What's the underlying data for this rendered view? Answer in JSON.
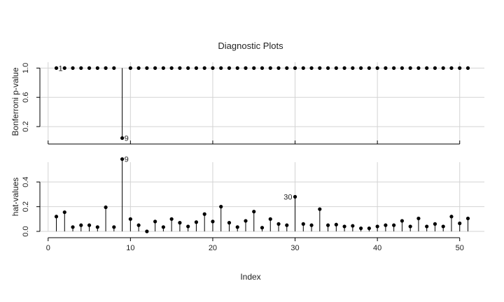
{
  "chart_data": {
    "title": "Diagnostic Plots",
    "xlabel": "Index",
    "xticks": [
      0,
      10,
      20,
      30,
      40,
      50
    ],
    "xlim": [
      -1,
      53
    ],
    "grid": true,
    "panels": [
      {
        "type": "stem",
        "ylabel": "Bonferroni p-value",
        "ylim": [
          0,
          1.08
        ],
        "yticks": [
          0.2,
          0.6,
          1.0
        ],
        "ytick_labels": [
          "0.2",
          "0.6",
          "1.0"
        ],
        "x": [
          1,
          2,
          3,
          4,
          5,
          6,
          7,
          8,
          9,
          10,
          11,
          12,
          13,
          14,
          15,
          16,
          17,
          18,
          19,
          20,
          21,
          22,
          23,
          24,
          25,
          26,
          27,
          28,
          29,
          30,
          31,
          32,
          33,
          34,
          35,
          36,
          37,
          38,
          39,
          40,
          41,
          42,
          43,
          44,
          45,
          46,
          47,
          48,
          49,
          50,
          51
        ],
        "values": [
          1,
          1,
          1,
          1,
          1,
          1,
          1,
          1,
          0.043,
          1,
          1,
          1,
          1,
          1,
          1,
          1,
          1,
          1,
          1,
          1,
          1,
          1,
          1,
          1,
          1,
          1,
          1,
          1,
          1,
          1,
          1,
          1,
          1,
          1,
          1,
          1,
          1,
          1,
          1,
          1,
          1,
          1,
          1,
          1,
          1,
          1,
          1,
          1,
          1,
          1,
          1
        ],
        "stem_base": 1.0,
        "annotations": [
          {
            "index": 1,
            "label": "1"
          },
          {
            "index": 9,
            "label": "9"
          }
        ]
      },
      {
        "type": "stem",
        "ylabel": "hat-values",
        "ylim": [
          0,
          0.56
        ],
        "yticks": [
          0.0,
          0.2,
          0.4
        ],
        "ytick_labels": [
          "0.0",
          "0.2",
          "0.4"
        ],
        "x": [
          1,
          2,
          3,
          4,
          5,
          6,
          7,
          8,
          9,
          10,
          11,
          12,
          13,
          14,
          15,
          16,
          17,
          18,
          19,
          20,
          21,
          22,
          23,
          24,
          25,
          26,
          27,
          28,
          29,
          30,
          31,
          32,
          33,
          34,
          35,
          36,
          37,
          38,
          39,
          40,
          41,
          42,
          43,
          44,
          45,
          46,
          47,
          48,
          49,
          50,
          51
        ],
        "values": [
          0.12,
          0.155,
          0.035,
          0.05,
          0.05,
          0.035,
          0.195,
          0.035,
          0.585,
          0.1,
          0.05,
          0,
          0.08,
          0.035,
          0.1,
          0.07,
          0.04,
          0.075,
          0.14,
          0.08,
          0.2,
          0.07,
          0.035,
          0.085,
          0.16,
          0.03,
          0.1,
          0.06,
          0.05,
          0.28,
          0.06,
          0.05,
          0.18,
          0.05,
          0.055,
          0.04,
          0.045,
          0.025,
          0.025,
          0.04,
          0.05,
          0.05,
          0.085,
          0.04,
          0.105,
          0.04,
          0.06,
          0.04,
          0.12,
          0.065,
          0.105
        ],
        "stem_base": 0,
        "annotations": [
          {
            "index": 9,
            "label": "9"
          },
          {
            "index": 30,
            "label": "30"
          }
        ]
      }
    ]
  }
}
